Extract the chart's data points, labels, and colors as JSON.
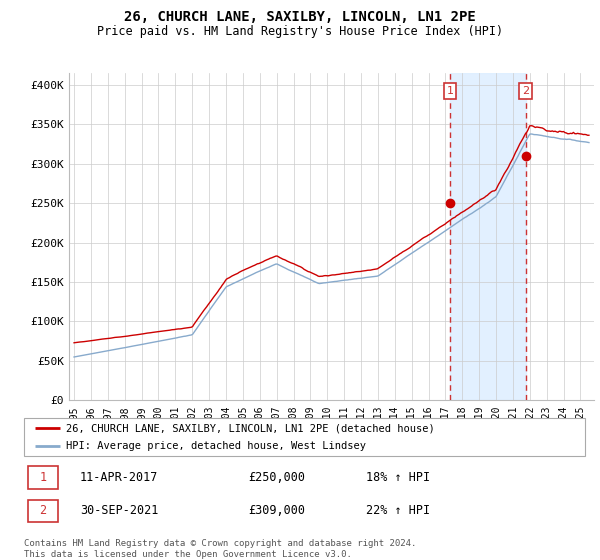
{
  "title": "26, CHURCH LANE, SAXILBY, LINCOLN, LN1 2PE",
  "subtitle": "Price paid vs. HM Land Registry's House Price Index (HPI)",
  "ylabel_ticks": [
    "£0",
    "£50K",
    "£100K",
    "£150K",
    "£200K",
    "£250K",
    "£300K",
    "£350K",
    "£400K"
  ],
  "ytick_vals": [
    0,
    50000,
    100000,
    150000,
    200000,
    250000,
    300000,
    350000,
    400000
  ],
  "ylim": [
    0,
    415000
  ],
  "xlim_start": 1994.7,
  "xlim_end": 2025.8,
  "transaction1": {
    "date_num": 2017.27,
    "price": 250000,
    "label": "1",
    "text": "11-APR-2017",
    "price_str": "£250,000",
    "pct": "18% ↑ HPI"
  },
  "transaction2": {
    "date_num": 2021.75,
    "price": 309000,
    "label": "2",
    "text": "30-SEP-2021",
    "price_str": "£309,000",
    "pct": "22% ↑ HPI"
  },
  "legend_line1": "26, CHURCH LANE, SAXILBY, LINCOLN, LN1 2PE (detached house)",
  "legend_line2": "HPI: Average price, detached house, West Lindsey",
  "footnote1": "Contains HM Land Registry data © Crown copyright and database right 2024.",
  "footnote2": "This data is licensed under the Open Government Licence v3.0.",
  "red_color": "#cc0000",
  "blue_color": "#88aacc",
  "background_color": "#ffffff",
  "grid_color": "#cccccc",
  "box_color": "#cc3333",
  "shade_color": "#ddeeff"
}
